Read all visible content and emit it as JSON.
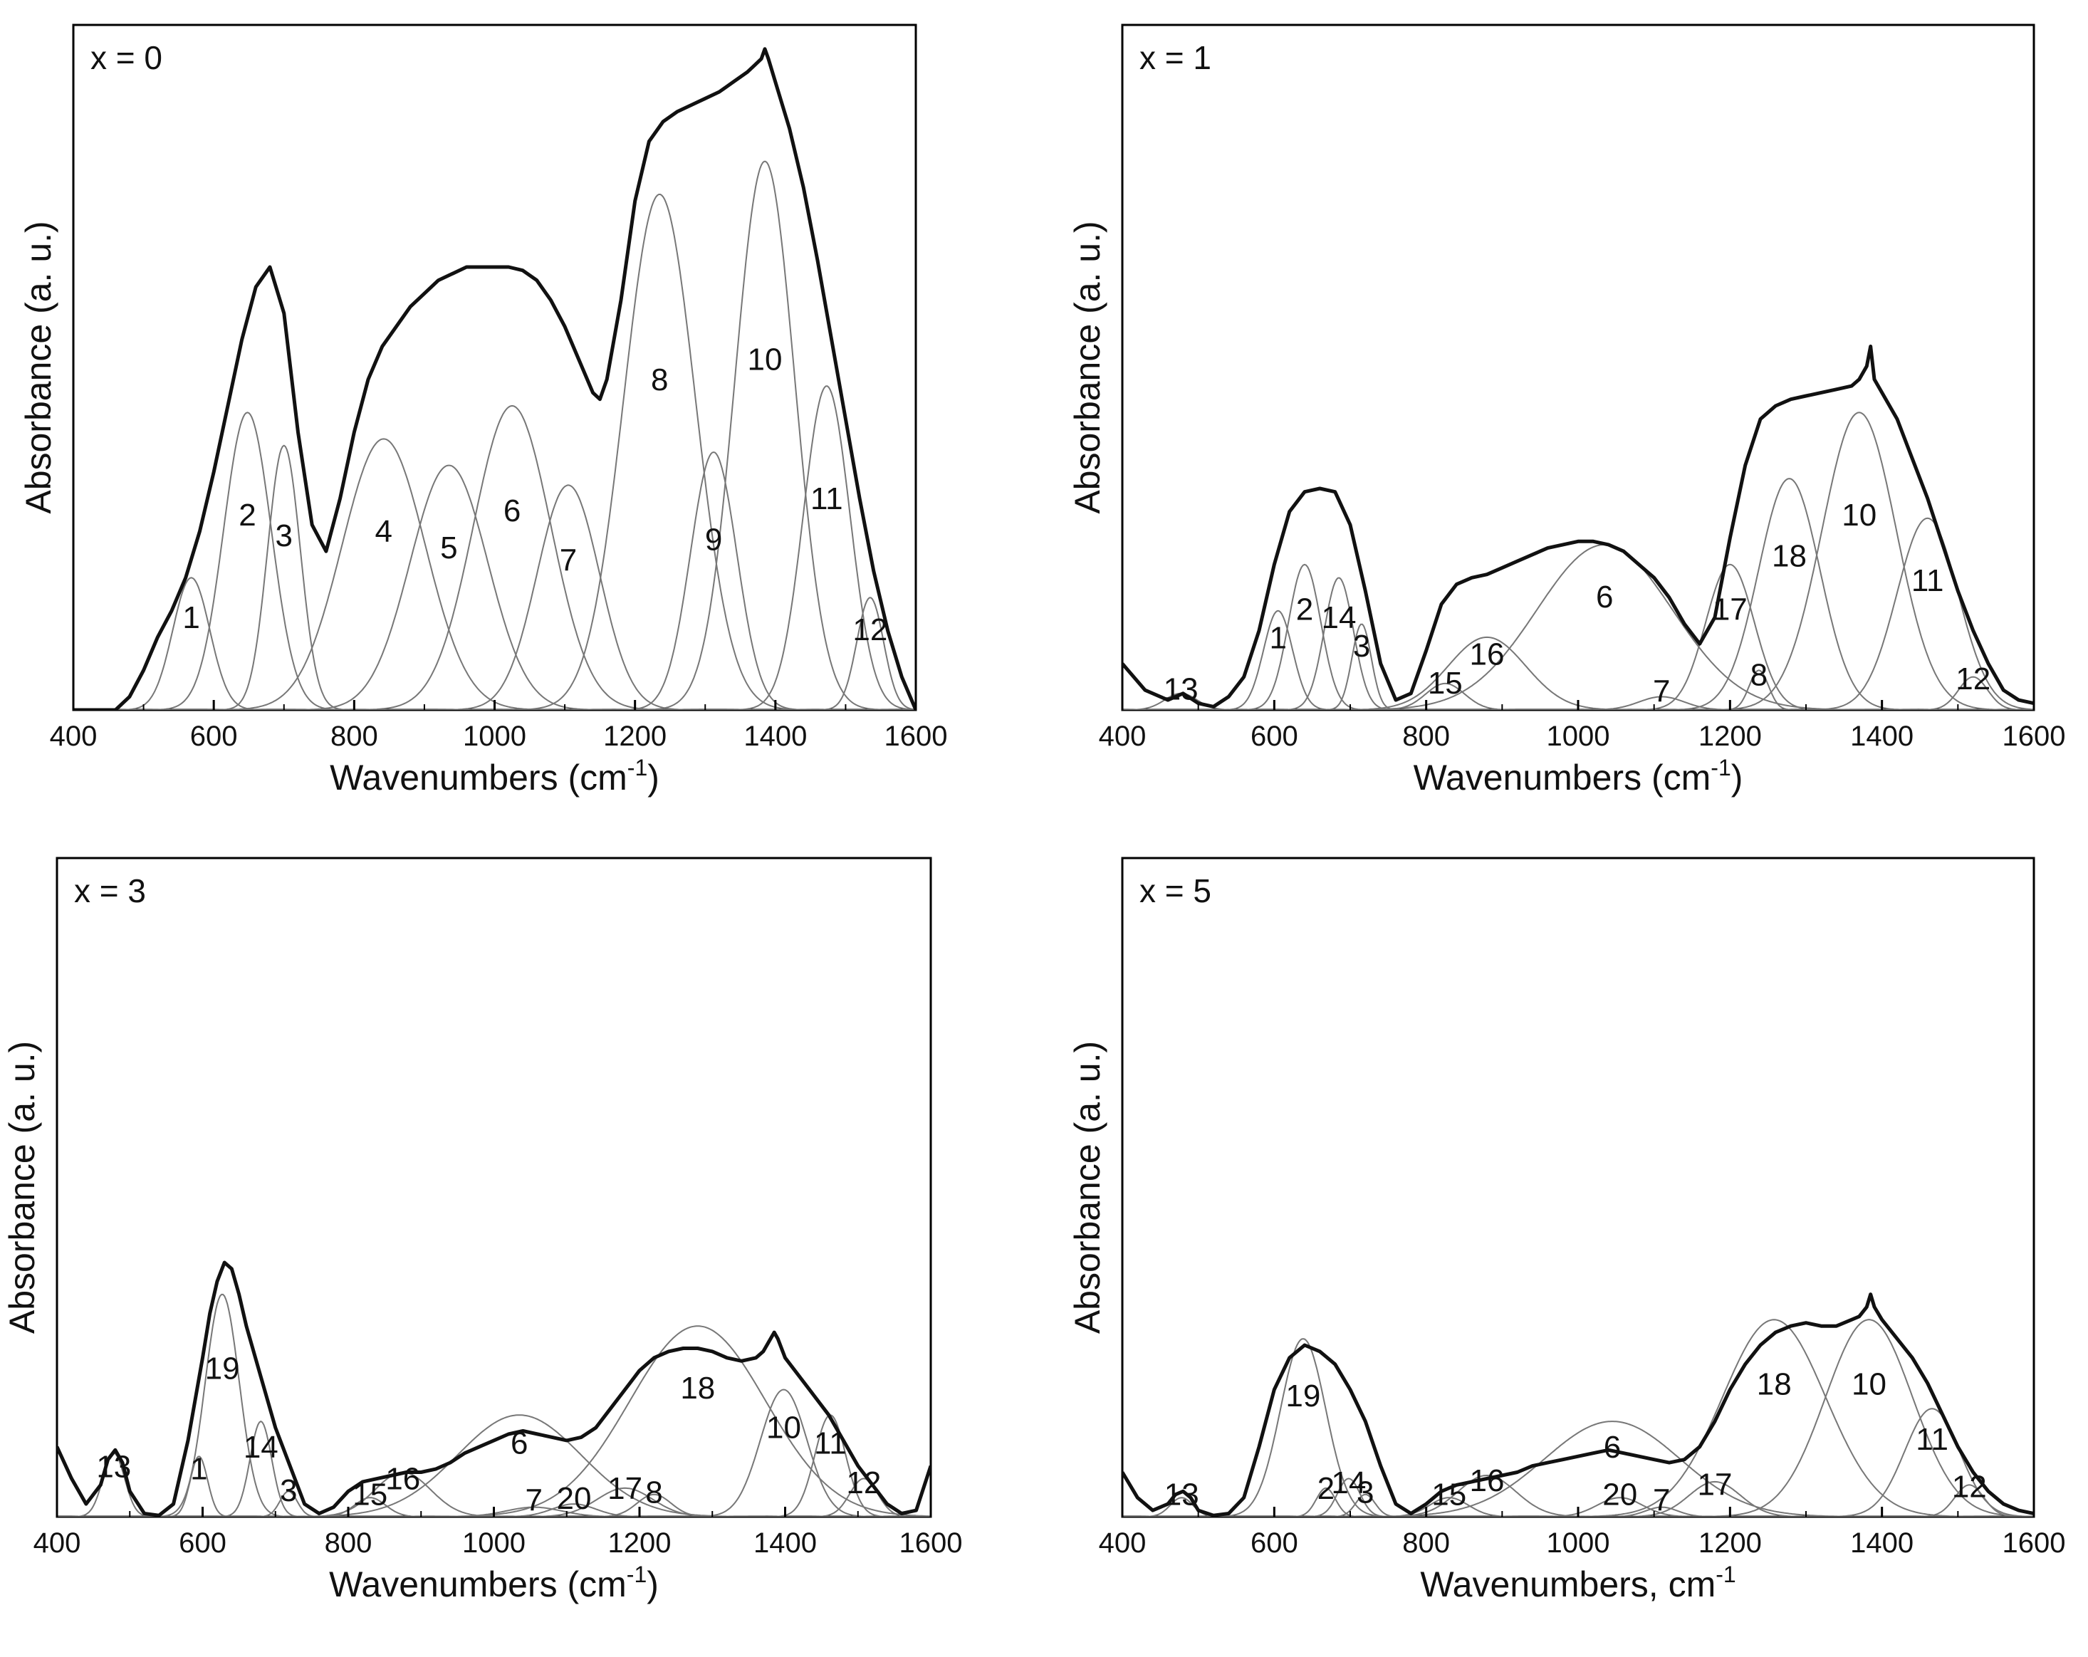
{
  "figure": {
    "colors": {
      "envelope": "#111111",
      "component": "#777777",
      "axis": "#000000",
      "background": "#ffffff"
    }
  },
  "chart_data": [
    {
      "type": "line",
      "panel": "x = 0",
      "xlabel": "Wavenumbers (cm",
      "xlabel_sup": "-1",
      "xlabel_end": ")",
      "ylabel": "Absorbance (a. u.)",
      "xlim": [
        400,
        1600
      ],
      "ylim": [
        0,
        1
      ],
      "x_ticks": [
        400,
        600,
        800,
        1000,
        1200,
        1400,
        1600
      ],
      "y_ticks_shown": false,
      "peaks": [
        {
          "label": "1",
          "center": 568,
          "height": 0.2,
          "fwhm": 62
        },
        {
          "label": "2",
          "center": 648,
          "height": 0.45,
          "fwhm": 80
        },
        {
          "label": "3",
          "center": 700,
          "height": 0.4,
          "fwhm": 55
        },
        {
          "label": "4",
          "center": 842,
          "height": 0.41,
          "fwhm": 140
        },
        {
          "label": "5",
          "center": 935,
          "height": 0.37,
          "fwhm": 130
        },
        {
          "label": "6",
          "center": 1025,
          "height": 0.46,
          "fwhm": 130
        },
        {
          "label": "7",
          "center": 1105,
          "height": 0.34,
          "fwhm": 105
        },
        {
          "label": "8",
          "center": 1235,
          "height": 0.78,
          "fwhm": 120
        },
        {
          "label": "9",
          "center": 1312,
          "height": 0.39,
          "fwhm": 78
        },
        {
          "label": "10",
          "center": 1385,
          "height": 0.83,
          "fwhm": 100
        },
        {
          "label": "11",
          "center": 1473,
          "height": 0.49,
          "fwhm": 78
        },
        {
          "label": "12",
          "center": 1535,
          "height": 0.17,
          "fwhm": 45
        }
      ],
      "envelope": {
        "x": [
          400,
          460,
          480,
          500,
          520,
          540,
          560,
          580,
          600,
          620,
          640,
          660,
          680,
          700,
          720,
          740,
          760,
          780,
          800,
          820,
          840,
          860,
          880,
          900,
          920,
          940,
          960,
          980,
          1000,
          1020,
          1040,
          1060,
          1080,
          1100,
          1120,
          1140,
          1150,
          1160,
          1180,
          1200,
          1220,
          1240,
          1260,
          1280,
          1300,
          1320,
          1340,
          1360,
          1370,
          1380,
          1385,
          1390,
          1400,
          1420,
          1440,
          1460,
          1480,
          1500,
          1520,
          1540,
          1560,
          1580,
          1600
        ],
        "y": [
          0.0,
          0.0,
          0.02,
          0.06,
          0.11,
          0.15,
          0.2,
          0.27,
          0.36,
          0.46,
          0.56,
          0.64,
          0.67,
          0.6,
          0.42,
          0.28,
          0.24,
          0.32,
          0.42,
          0.5,
          0.55,
          0.58,
          0.61,
          0.63,
          0.65,
          0.66,
          0.67,
          0.67,
          0.67,
          0.67,
          0.665,
          0.65,
          0.62,
          0.58,
          0.53,
          0.48,
          0.47,
          0.5,
          0.62,
          0.77,
          0.86,
          0.89,
          0.905,
          0.915,
          0.925,
          0.935,
          0.95,
          0.965,
          0.975,
          0.985,
          1.0,
          0.985,
          0.95,
          0.88,
          0.79,
          0.68,
          0.56,
          0.44,
          0.32,
          0.21,
          0.12,
          0.05,
          0.0
        ]
      }
    },
    {
      "type": "line",
      "panel": "x = 1",
      "xlabel": "Wavenumbers (cm",
      "xlabel_sup": "-1",
      "xlabel_end": ")",
      "ylabel": "Absorbance (a. u.)",
      "xlim": [
        400,
        1600
      ],
      "ylim": [
        0,
        1
      ],
      "x_ticks": [
        400,
        600,
        800,
        1000,
        1200,
        1400,
        1600
      ],
      "y_ticks_shown": false,
      "peaks": [
        {
          "label": "13",
          "center": 477,
          "height": 0.025,
          "fwhm": 50
        },
        {
          "label": "1",
          "center": 605,
          "height": 0.15,
          "fwhm": 45
        },
        {
          "label": "2",
          "center": 640,
          "height": 0.22,
          "fwhm": 50
        },
        {
          "label": "14",
          "center": 685,
          "height": 0.2,
          "fwhm": 45
        },
        {
          "label": "3",
          "center": 715,
          "height": 0.13,
          "fwhm": 30
        },
        {
          "label": "15",
          "center": 825,
          "height": 0.04,
          "fwhm": 60
        },
        {
          "label": "16",
          "center": 880,
          "height": 0.11,
          "fwhm": 120
        },
        {
          "label": "6",
          "center": 1035,
          "height": 0.25,
          "fwhm": 210
        },
        {
          "label": "7",
          "center": 1110,
          "height": 0.02,
          "fwhm": 70
        },
        {
          "label": "17",
          "center": 1200,
          "height": 0.22,
          "fwhm": 75
        },
        {
          "label": "8",
          "center": 1238,
          "height": 0.06,
          "fwhm": 30
        },
        {
          "label": "18",
          "center": 1278,
          "height": 0.35,
          "fwhm": 95
        },
        {
          "label": "10",
          "center": 1370,
          "height": 0.45,
          "fwhm": 115
        },
        {
          "label": "11",
          "center": 1460,
          "height": 0.29,
          "fwhm": 95
        },
        {
          "label": "12",
          "center": 1520,
          "height": 0.05,
          "fwhm": 45
        }
      ],
      "envelope": {
        "x": [
          400,
          430,
          460,
          480,
          500,
          520,
          540,
          560,
          580,
          600,
          620,
          640,
          660,
          680,
          700,
          720,
          740,
          760,
          780,
          800,
          820,
          840,
          860,
          880,
          900,
          920,
          940,
          960,
          980,
          1000,
          1020,
          1040,
          1060,
          1080,
          1100,
          1120,
          1140,
          1160,
          1180,
          1200,
          1220,
          1240,
          1260,
          1280,
          1300,
          1320,
          1340,
          1360,
          1370,
          1380,
          1385,
          1390,
          1400,
          1420,
          1440,
          1460,
          1480,
          1500,
          1520,
          1540,
          1560,
          1580,
          1600
        ],
        "y": [
          0.07,
          0.03,
          0.015,
          0.025,
          0.01,
          0.005,
          0.02,
          0.05,
          0.12,
          0.22,
          0.3,
          0.33,
          0.335,
          0.33,
          0.28,
          0.18,
          0.07,
          0.015,
          0.025,
          0.09,
          0.16,
          0.19,
          0.2,
          0.205,
          0.215,
          0.225,
          0.235,
          0.245,
          0.25,
          0.255,
          0.255,
          0.25,
          0.24,
          0.22,
          0.2,
          0.17,
          0.13,
          0.1,
          0.14,
          0.26,
          0.37,
          0.44,
          0.46,
          0.47,
          0.475,
          0.48,
          0.485,
          0.49,
          0.5,
          0.52,
          0.55,
          0.5,
          0.48,
          0.44,
          0.38,
          0.32,
          0.25,
          0.18,
          0.12,
          0.07,
          0.03,
          0.015,
          0.01
        ]
      }
    },
    {
      "type": "line",
      "panel": "x = 3",
      "xlabel": "Wavenumbers (cm",
      "xlabel_sup": "-1",
      "xlabel_end": ")",
      "ylabel": "Absorbance (a. u.)",
      "xlim": [
        400,
        1600
      ],
      "ylim": [
        0,
        1
      ],
      "x_ticks": [
        400,
        600,
        800,
        1000,
        1200,
        1400,
        1600
      ],
      "y_ticks_shown": false,
      "peaks": [
        {
          "label": "13",
          "center": 478,
          "height": 0.1,
          "fwhm": 35
        },
        {
          "label": "1",
          "center": 595,
          "height": 0.095,
          "fwhm": 28
        },
        {
          "label": "19",
          "center": 627,
          "height": 0.35,
          "fwhm": 55
        },
        {
          "label": "14",
          "center": 680,
          "height": 0.15,
          "fwhm": 35
        },
        {
          "label": "3",
          "center": 718,
          "height": 0.04,
          "fwhm": 28
        },
        {
          "label": "15",
          "center": 830,
          "height": 0.03,
          "fwhm": 50
        },
        {
          "label": "16",
          "center": 875,
          "height": 0.07,
          "fwhm": 90
        },
        {
          "label": "6",
          "center": 1035,
          "height": 0.16,
          "fwhm": 200
        },
        {
          "label": "7",
          "center": 1055,
          "height": 0.015,
          "fwhm": 90
        },
        {
          "label": "20",
          "center": 1110,
          "height": 0.02,
          "fwhm": 70
        },
        {
          "label": "17",
          "center": 1180,
          "height": 0.045,
          "fwhm": 90
        },
        {
          "label": "8",
          "center": 1220,
          "height": 0.035,
          "fwhm": 55
        },
        {
          "label": "18",
          "center": 1280,
          "height": 0.3,
          "fwhm": 220
        },
        {
          "label": "10",
          "center": 1398,
          "height": 0.2,
          "fwhm": 75
        },
        {
          "label": "11",
          "center": 1462,
          "height": 0.16,
          "fwhm": 50
        },
        {
          "label": "12",
          "center": 1508,
          "height": 0.06,
          "fwhm": 45
        }
      ],
      "envelope": {
        "x": [
          400,
          420,
          440,
          460,
          470,
          480,
          490,
          500,
          520,
          540,
          560,
          580,
          600,
          610,
          620,
          630,
          640,
          650,
          660,
          680,
          700,
          720,
          740,
          760,
          780,
          800,
          820,
          840,
          860,
          880,
          900,
          920,
          940,
          960,
          980,
          1000,
          1020,
          1040,
          1060,
          1080,
          1100,
          1120,
          1140,
          1160,
          1180,
          1200,
          1220,
          1240,
          1260,
          1280,
          1300,
          1320,
          1340,
          1360,
          1370,
          1380,
          1385,
          1390,
          1400,
          1420,
          1440,
          1460,
          1480,
          1500,
          1520,
          1540,
          1560,
          1580,
          1600
        ],
        "y": [
          0.11,
          0.06,
          0.02,
          0.05,
          0.09,
          0.105,
          0.085,
          0.04,
          0.005,
          0.002,
          0.02,
          0.12,
          0.25,
          0.32,
          0.37,
          0.4,
          0.39,
          0.35,
          0.3,
          0.22,
          0.14,
          0.08,
          0.02,
          0.005,
          0.015,
          0.04,
          0.055,
          0.06,
          0.065,
          0.07,
          0.07,
          0.075,
          0.085,
          0.1,
          0.11,
          0.12,
          0.13,
          0.135,
          0.13,
          0.125,
          0.12,
          0.125,
          0.14,
          0.17,
          0.2,
          0.23,
          0.25,
          0.26,
          0.265,
          0.265,
          0.26,
          0.25,
          0.245,
          0.25,
          0.26,
          0.28,
          0.29,
          0.28,
          0.25,
          0.22,
          0.19,
          0.16,
          0.12,
          0.08,
          0.05,
          0.02,
          0.005,
          0.01,
          0.08
        ]
      }
    },
    {
      "type": "line",
      "panel": "x = 5",
      "xlabel": "Wavenumbers, cm",
      "xlabel_sup": "-1",
      "xlabel_end": "",
      "ylabel": "Absorbance (a. u.)",
      "xlim": [
        400,
        1600
      ],
      "ylim": [
        0,
        1
      ],
      "x_ticks": [
        400,
        600,
        800,
        1000,
        1200,
        1400,
        1600
      ],
      "y_ticks_shown": false,
      "peaks": [
        {
          "label": "13",
          "center": 478,
          "height": 0.03,
          "fwhm": 35
        },
        {
          "label": "19",
          "center": 638,
          "height": 0.28,
          "fwhm": 70
        },
        {
          "label": "2",
          "center": 668,
          "height": 0.045,
          "fwhm": 30
        },
        {
          "label": "14",
          "center": 698,
          "height": 0.06,
          "fwhm": 35
        },
        {
          "label": "3",
          "center": 720,
          "height": 0.035,
          "fwhm": 30
        },
        {
          "label": "15",
          "center": 830,
          "height": 0.03,
          "fwhm": 60
        },
        {
          "label": "16",
          "center": 880,
          "height": 0.065,
          "fwhm": 90
        },
        {
          "label": "6",
          "center": 1045,
          "height": 0.15,
          "fwhm": 210
        },
        {
          "label": "20",
          "center": 1055,
          "height": 0.03,
          "fwhm": 70
        },
        {
          "label": "7",
          "center": 1110,
          "height": 0.015,
          "fwhm": 50
        },
        {
          "label": "17",
          "center": 1180,
          "height": 0.055,
          "fwhm": 80
        },
        {
          "label": "18",
          "center": 1258,
          "height": 0.31,
          "fwhm": 160
        },
        {
          "label": "10",
          "center": 1383,
          "height": 0.31,
          "fwhm": 135
        },
        {
          "label": "11",
          "center": 1466,
          "height": 0.17,
          "fwhm": 85
        },
        {
          "label": "12",
          "center": 1515,
          "height": 0.05,
          "fwhm": 45
        }
      ],
      "envelope": {
        "x": [
          400,
          420,
          440,
          460,
          470,
          480,
          490,
          500,
          520,
          540,
          560,
          580,
          600,
          620,
          640,
          660,
          680,
          700,
          720,
          740,
          760,
          780,
          800,
          820,
          840,
          860,
          880,
          900,
          920,
          940,
          960,
          980,
          1000,
          1020,
          1040,
          1060,
          1080,
          1100,
          1120,
          1140,
          1160,
          1180,
          1200,
          1220,
          1240,
          1260,
          1280,
          1300,
          1320,
          1340,
          1360,
          1370,
          1380,
          1385,
          1390,
          1400,
          1420,
          1440,
          1460,
          1480,
          1500,
          1520,
          1540,
          1560,
          1580,
          1600
        ],
        "y": [
          0.07,
          0.03,
          0.01,
          0.02,
          0.035,
          0.04,
          0.03,
          0.01,
          0.002,
          0.005,
          0.03,
          0.11,
          0.2,
          0.25,
          0.27,
          0.26,
          0.24,
          0.2,
          0.15,
          0.08,
          0.02,
          0.005,
          0.02,
          0.04,
          0.05,
          0.055,
          0.06,
          0.065,
          0.07,
          0.08,
          0.085,
          0.09,
          0.095,
          0.1,
          0.105,
          0.1,
          0.095,
          0.09,
          0.085,
          0.09,
          0.11,
          0.15,
          0.2,
          0.24,
          0.27,
          0.29,
          0.3,
          0.305,
          0.3,
          0.3,
          0.31,
          0.315,
          0.33,
          0.35,
          0.33,
          0.31,
          0.28,
          0.25,
          0.21,
          0.16,
          0.11,
          0.07,
          0.04,
          0.02,
          0.01,
          0.005
        ]
      }
    }
  ]
}
